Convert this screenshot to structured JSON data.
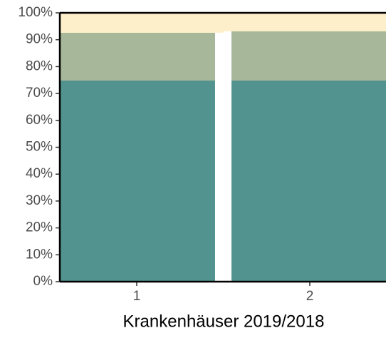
{
  "chart_data": {
    "type": "stacked_bar",
    "x_label": "Krankenhäuser 2019/2018",
    "categories": [
      "1",
      "2"
    ],
    "series": [
      {
        "color": "#52928f",
        "values": [
          74.8,
          74.8
        ]
      },
      {
        "color": "#a6b899",
        "values": [
          17.8,
          18.3
        ]
      },
      {
        "color": "#fdefca",
        "values": [
          7.4,
          6.9
        ]
      }
    ],
    "ylim": [
      0,
      100
    ],
    "yticks": [
      {
        "value": 0,
        "label": "0%"
      },
      {
        "value": 10,
        "label": "10%"
      },
      {
        "value": 20,
        "label": "20%"
      },
      {
        "value": 30,
        "label": "30%"
      },
      {
        "value": 40,
        "label": "40%"
      },
      {
        "value": 50,
        "label": "50%"
      },
      {
        "value": 60,
        "label": "60%"
      },
      {
        "value": 70,
        "label": "70%"
      },
      {
        "value": 80,
        "label": "80%"
      },
      {
        "value": 90,
        "label": "90%"
      },
      {
        "value": 100,
        "label": "100%"
      }
    ]
  }
}
